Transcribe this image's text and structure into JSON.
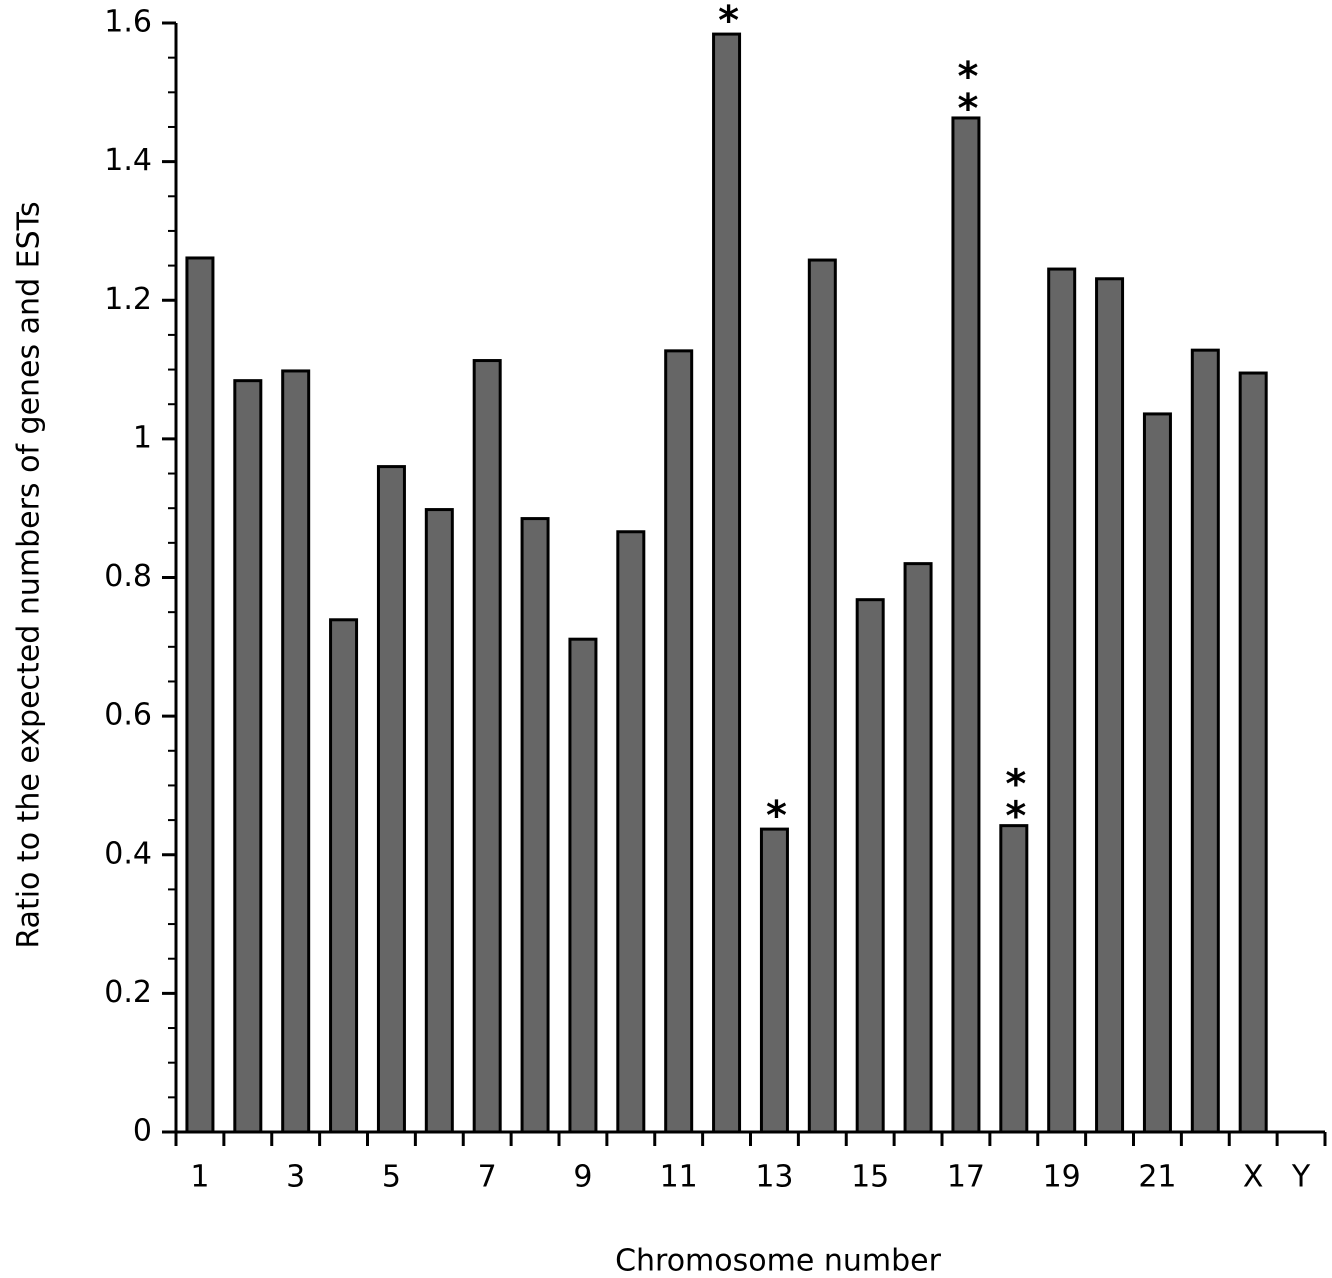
{
  "chart_data": {
    "type": "bar",
    "x_label": "Chromosome number",
    "y_label": "Ratio to the expected numbers of genes and ESTs",
    "categories": [
      "1",
      null,
      "3",
      null,
      "5",
      null,
      "7",
      null,
      "9",
      null,
      "11",
      null,
      "13",
      null,
      "15",
      null,
      "17",
      null,
      "19",
      null,
      "21",
      null,
      "X",
      "Y"
    ],
    "values": [
      1.261,
      1.084,
      1.098,
      0.739,
      0.96,
      0.898,
      1.113,
      0.885,
      0.711,
      0.866,
      1.127,
      1.584,
      0.437,
      1.258,
      0.768,
      0.82,
      1.463,
      0.442,
      1.245,
      1.231,
      1.036,
      1.128,
      1.095,
      null
    ],
    "annotations": [
      null,
      null,
      null,
      null,
      null,
      null,
      null,
      null,
      null,
      null,
      null,
      "*",
      "*",
      null,
      null,
      null,
      "**",
      "**",
      null,
      null,
      null,
      null,
      null,
      null
    ],
    "color": "#666666",
    "ylim": [
      0,
      1.6
    ],
    "yticks": [
      0,
      0.2,
      0.4,
      0.6,
      0.8,
      1,
      1.2,
      1.4,
      1.6
    ]
  }
}
